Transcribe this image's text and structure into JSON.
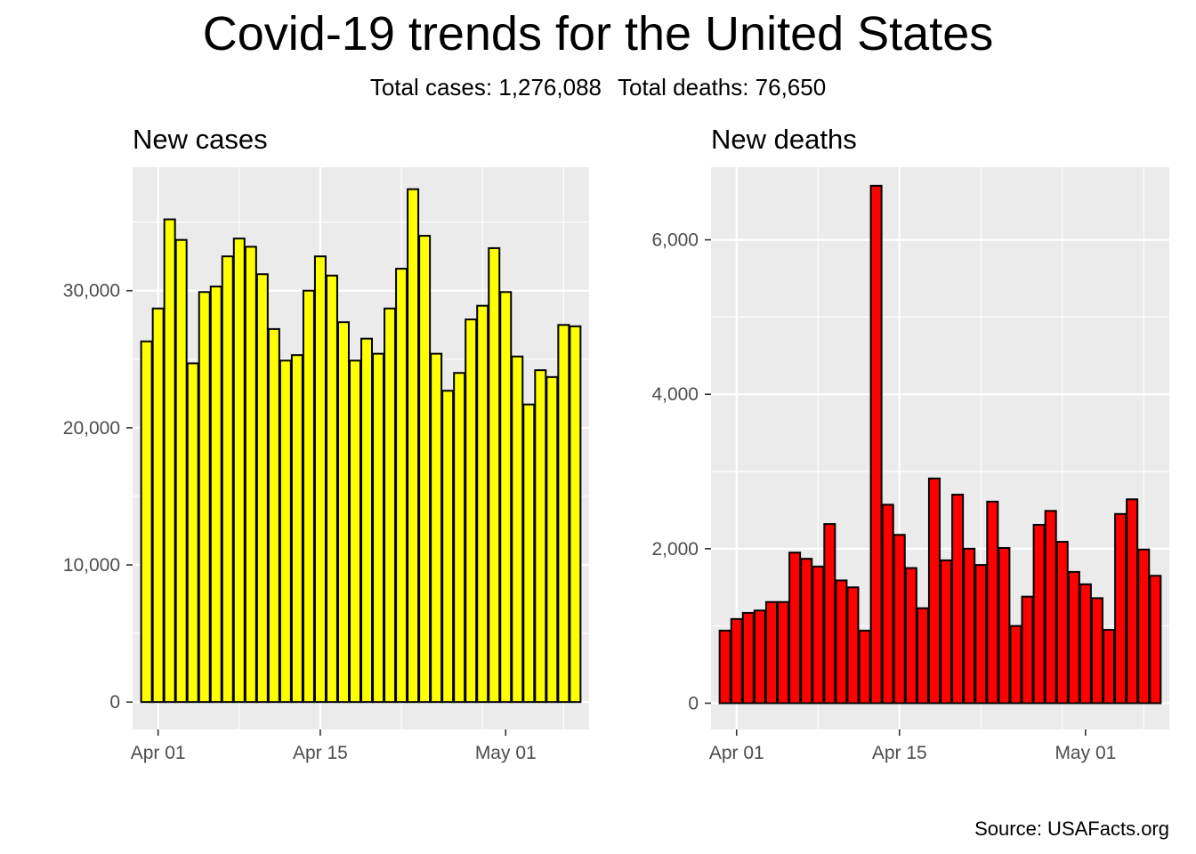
{
  "title": "Covid-19 trends for the United States",
  "subtitle": {
    "cases": "Total cases: 1,276,088",
    "deaths": "Total deaths: 76,650"
  },
  "caption": "Source: USAFacts.org",
  "colors": {
    "panel_background": "#ebebeb",
    "grid": "#ffffff",
    "bar_outline": "#000000",
    "tick_text": "#4d4d4d"
  },
  "chart_data": [
    {
      "type": "bar",
      "title": "New cases",
      "xlabel": "",
      "ylabel": "",
      "fill": "#ffff00",
      "grid": true,
      "x_start": "2020-03-31",
      "x_ticks": [
        "Apr 01",
        "Apr 15",
        "May 01"
      ],
      "y_ticks": [
        "0",
        "10,000",
        "20,000",
        "30,000"
      ],
      "ylim": [
        -2000,
        39000
      ],
      "x": [
        "2020-03-31",
        "2020-04-01",
        "2020-04-02",
        "2020-04-03",
        "2020-04-04",
        "2020-04-05",
        "2020-04-06",
        "2020-04-07",
        "2020-04-08",
        "2020-04-09",
        "2020-04-10",
        "2020-04-11",
        "2020-04-12",
        "2020-04-13",
        "2020-04-14",
        "2020-04-15",
        "2020-04-16",
        "2020-04-17",
        "2020-04-18",
        "2020-04-19",
        "2020-04-20",
        "2020-04-21",
        "2020-04-22",
        "2020-04-23",
        "2020-04-24",
        "2020-04-25",
        "2020-04-26",
        "2020-04-27",
        "2020-04-28",
        "2020-04-29",
        "2020-04-30",
        "2020-05-01",
        "2020-05-02",
        "2020-05-03",
        "2020-05-04",
        "2020-05-05",
        "2020-05-06",
        "2020-05-07"
      ],
      "values": [
        26300,
        28700,
        35200,
        33700,
        24700,
        29900,
        30300,
        32500,
        33800,
        33200,
        31200,
        27200,
        24900,
        25300,
        30000,
        32500,
        31100,
        27700,
        24900,
        26500,
        25400,
        28700,
        31600,
        37400,
        34000,
        25400,
        22700,
        24000,
        27900,
        28900,
        33100,
        29900,
        25200,
        21700,
        24200,
        23700,
        27500,
        27400
      ]
    },
    {
      "type": "bar",
      "title": "New deaths",
      "xlabel": "",
      "ylabel": "",
      "fill": "#ff0000",
      "grid": true,
      "x_start": "2020-03-31",
      "x_ticks": [
        "Apr 01",
        "Apr 15",
        "May 01"
      ],
      "y_ticks": [
        "0",
        "2,000",
        "4,000",
        "6,000"
      ],
      "ylim": [
        -340,
        6940
      ],
      "x": [
        "2020-03-31",
        "2020-04-01",
        "2020-04-02",
        "2020-04-03",
        "2020-04-04",
        "2020-04-05",
        "2020-04-06",
        "2020-04-07",
        "2020-04-08",
        "2020-04-09",
        "2020-04-10",
        "2020-04-11",
        "2020-04-12",
        "2020-04-13",
        "2020-04-14",
        "2020-04-15",
        "2020-04-16",
        "2020-04-17",
        "2020-04-18",
        "2020-04-19",
        "2020-04-20",
        "2020-04-21",
        "2020-04-22",
        "2020-04-23",
        "2020-04-24",
        "2020-04-25",
        "2020-04-26",
        "2020-04-27",
        "2020-04-28",
        "2020-04-29",
        "2020-04-30",
        "2020-05-01",
        "2020-05-02",
        "2020-05-03",
        "2020-05-04",
        "2020-05-05",
        "2020-05-06",
        "2020-05-07"
      ],
      "values": [
        940,
        1090,
        1170,
        1200,
        1310,
        1310,
        1950,
        1870,
        1770,
        2320,
        1590,
        1500,
        940,
        6700,
        2570,
        2180,
        1750,
        1230,
        2910,
        1850,
        2700,
        2000,
        1790,
        2610,
        2010,
        1000,
        1380,
        2310,
        2490,
        2090,
        1700,
        1540,
        1360,
        950,
        2450,
        2640,
        1990,
        1650
      ]
    }
  ]
}
